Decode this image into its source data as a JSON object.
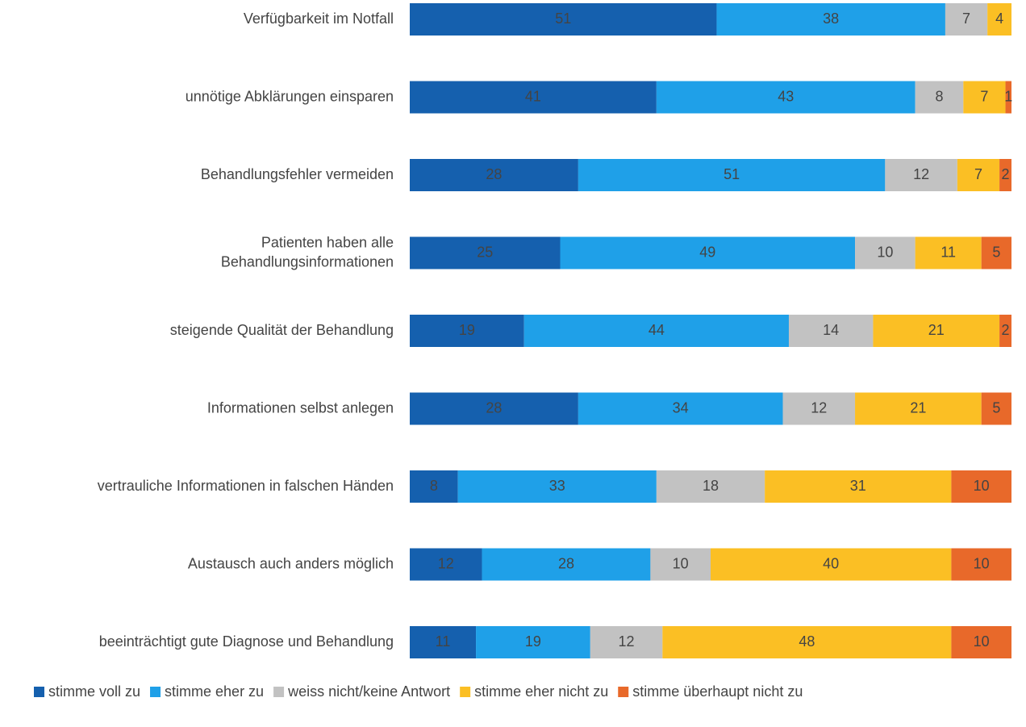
{
  "chart_data": {
    "type": "stacked-bar-horizontal",
    "categories": [
      "Verfügbarkeit im Notfall",
      "unnötige Abklärungen einsparen",
      "Behandlungsfehler vermeiden",
      "Patienten haben alle\nBehandlungsinformationen",
      "steigende Qualität der Behandlung",
      "Informationen selbst anlegen",
      "vertrauliche Informationen in falschen Händen",
      "Austausch auch anders möglich",
      "beeinträchtigt gute Diagnose und Behandlung"
    ],
    "xlim": [
      0,
      100
    ],
    "legend": "bottom",
    "series": [
      {
        "name": "stimme voll zu",
        "color": "#1560ae",
        "label_color": "#ffffff",
        "values": [
          51,
          41,
          28,
          25,
          19,
          28,
          8,
          12,
          11
        ]
      },
      {
        "name": "stimme eher zu",
        "color": "#1fa0e8",
        "label_color": "#ffffff",
        "values": [
          38,
          43,
          51,
          49,
          44,
          34,
          33,
          28,
          19
        ]
      },
      {
        "name": "weiss nicht/keine Antwort",
        "color": "#c2c2c2",
        "label_color": "#ffffff",
        "values": [
          7,
          8,
          12,
          10,
          14,
          12,
          18,
          10,
          12
        ]
      },
      {
        "name": "stimme eher nicht zu",
        "color": "#fbbf24",
        "label_color": "#333333",
        "values": [
          4,
          7,
          7,
          11,
          21,
          21,
          31,
          40,
          48
        ]
      },
      {
        "name": "stimme überhaupt nicht zu",
        "color": "#e8692a",
        "label_color": "#333333",
        "values": [
          null,
          1,
          2,
          5,
          2,
          5,
          10,
          10,
          10
        ]
      }
    ]
  }
}
